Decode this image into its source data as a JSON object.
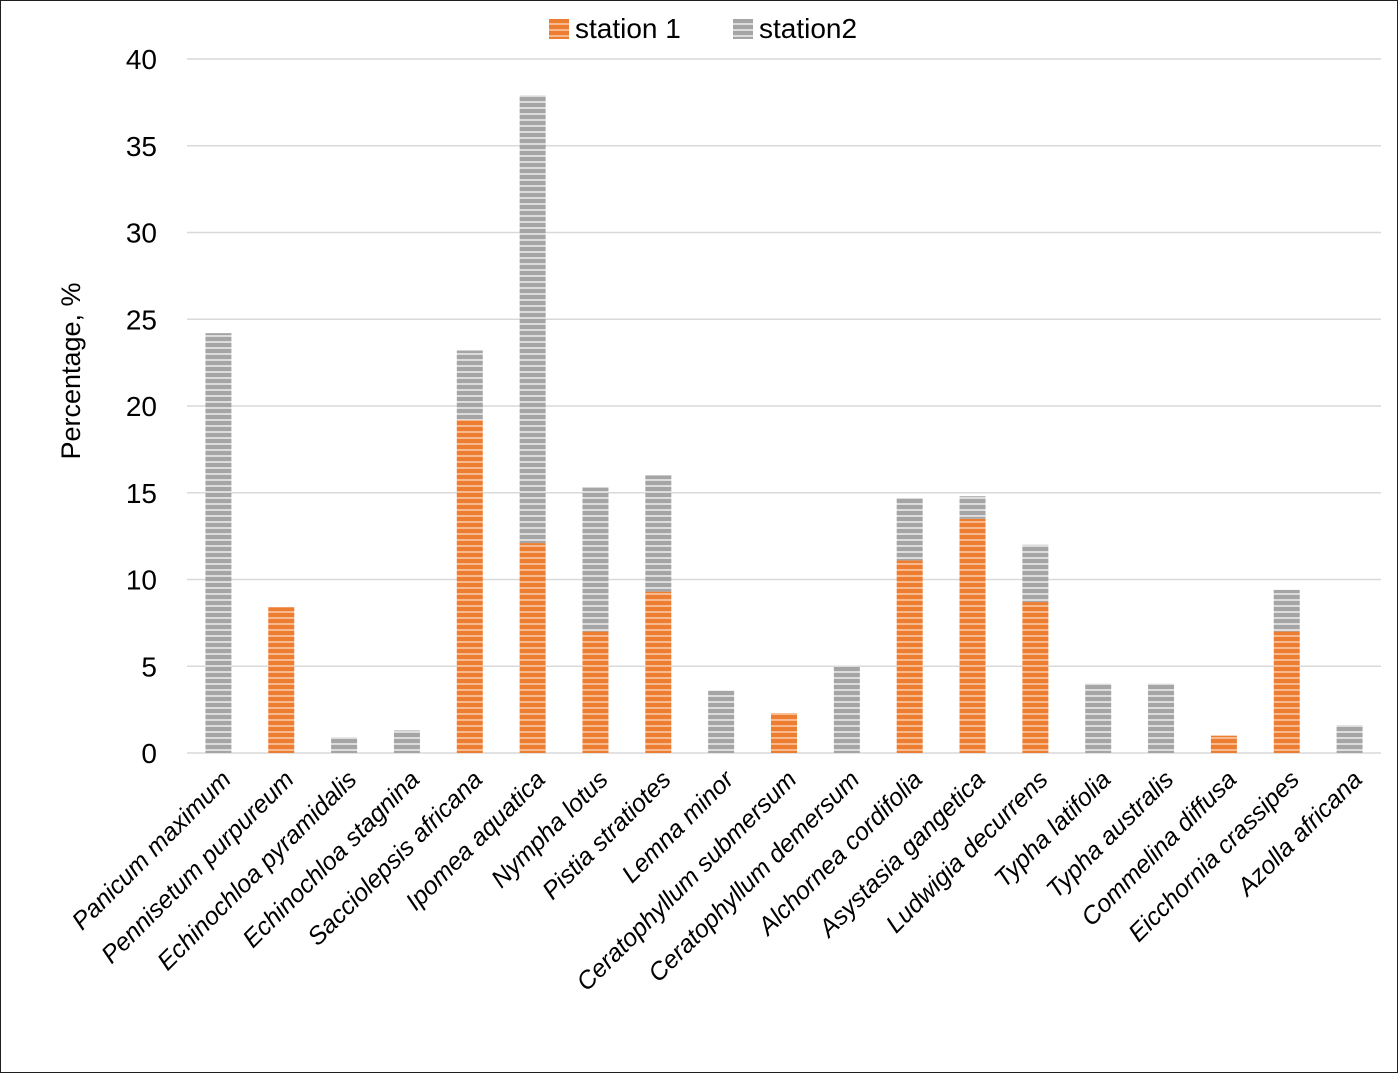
{
  "chart_data": {
    "type": "bar",
    "stacked": true,
    "title": "",
    "xlabel": "",
    "ylabel": "Percentage, %",
    "ylim": [
      0,
      40
    ],
    "yticks": [
      0,
      5,
      10,
      15,
      20,
      25,
      30,
      35,
      40
    ],
    "grid": "horizontal",
    "legend_position": "top-center",
    "categories": [
      "Panicum maximum",
      "Pennisetum purpureum",
      "Echinochloa pyramidalis",
      "Echinochloa stagnina",
      "Sacciolepsis africana",
      "Ipomea aquatica",
      "Nympha lotus",
      "Pistia stratiotes",
      "Lemna minor",
      "Ceratophyllum submersum",
      "Ceratophyllum demersum",
      "Alchornea cordifolia",
      "Asystasia gangetica",
      "Ludwigia decurrens",
      "Typha latifolia",
      "Typha australis",
      "Commelina diffusa",
      "Eicchornia crassipes",
      "Azolla  africana"
    ],
    "series": [
      {
        "name": "station 1",
        "color": "#ed7d31",
        "values": [
          0,
          8.4,
          0,
          0,
          19.2,
          12.1,
          7.0,
          9.3,
          0,
          2.3,
          0,
          11.1,
          13.5,
          8.7,
          0,
          0,
          1.0,
          7.0,
          0
        ]
      },
      {
        "name": "station2",
        "color": "#a5a5a5",
        "values": [
          24.2,
          0,
          0.9,
          1.3,
          4.0,
          25.8,
          8.3,
          6.7,
          3.6,
          0,
          5.0,
          3.6,
          1.3,
          3.3,
          4.0,
          4.0,
          0,
          2.4,
          1.6
        ]
      }
    ]
  }
}
